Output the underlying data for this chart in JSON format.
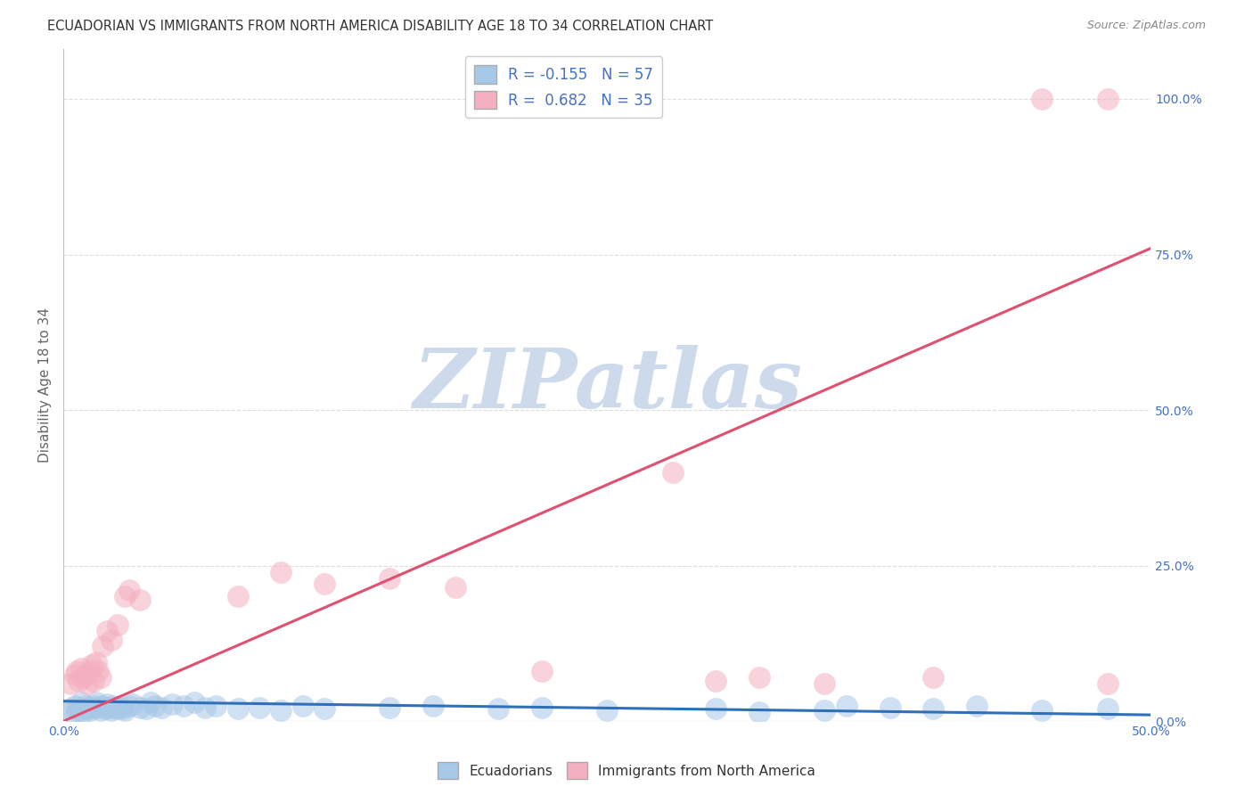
{
  "title": "ECUADORIAN VS IMMIGRANTS FROM NORTH AMERICA DISABILITY AGE 18 TO 34 CORRELATION CHART",
  "source": "Source: ZipAtlas.com",
  "ylabel": "Disability Age 18 to 34",
  "xlim": [
    0.0,
    0.5
  ],
  "ylim": [
    0.0,
    1.08
  ],
  "yticks": [
    0.0,
    0.25,
    0.5,
    0.75,
    1.0
  ],
  "ytick_labels": [
    "0.0%",
    "25.0%",
    "50.0%",
    "75.0%",
    "100.0%"
  ],
  "xticks": [
    0.0,
    0.1,
    0.2,
    0.3,
    0.4,
    0.5
  ],
  "xtick_labels": [
    "0.0%",
    "",
    "",
    "",
    "",
    "50.0%"
  ],
  "blue_R": -0.155,
  "blue_N": 57,
  "pink_R": 0.682,
  "pink_N": 35,
  "blue_color": "#a8c8e8",
  "pink_color": "#f4b0c0",
  "blue_line_color": "#3070b8",
  "pink_line_color": "#e05070",
  "blue_line_x": [
    0.0,
    0.5
  ],
  "blue_line_y": [
    0.032,
    0.01
  ],
  "pink_line_x": [
    0.0,
    0.5
  ],
  "pink_line_y": [
    0.0,
    0.76
  ],
  "watermark_text": "ZIPatlas",
  "watermark_color": "#cddaeb",
  "background_color": "#ffffff",
  "grid_color": "#dddddd",
  "legend_label_blue": "Ecuadorians",
  "legend_label_pink": "Immigrants from North America",
  "blue_scatter_x": [
    0.003,
    0.005,
    0.006,
    0.007,
    0.008,
    0.009,
    0.01,
    0.011,
    0.012,
    0.013,
    0.014,
    0.015,
    0.016,
    0.017,
    0.018,
    0.019,
    0.02,
    0.021,
    0.022,
    0.023,
    0.024,
    0.025,
    0.026,
    0.027,
    0.028,
    0.03,
    0.032,
    0.035,
    0.038,
    0.04,
    0.042,
    0.045,
    0.05,
    0.055,
    0.06,
    0.065,
    0.07,
    0.08,
    0.09,
    0.1,
    0.11,
    0.12,
    0.15,
    0.17,
    0.2,
    0.22,
    0.25,
    0.3,
    0.32,
    0.35,
    0.38,
    0.4,
    0.42,
    0.45,
    0.48,
    0.005,
    0.36
  ],
  "blue_scatter_y": [
    0.02,
    0.025,
    0.018,
    0.022,
    0.03,
    0.015,
    0.025,
    0.02,
    0.018,
    0.022,
    0.025,
    0.03,
    0.022,
    0.018,
    0.025,
    0.02,
    0.028,
    0.022,
    0.018,
    0.025,
    0.02,
    0.022,
    0.025,
    0.02,
    0.018,
    0.025,
    0.028,
    0.022,
    0.02,
    0.03,
    0.025,
    0.022,
    0.028,
    0.025,
    0.03,
    0.022,
    0.025,
    0.02,
    0.022,
    0.018,
    0.025,
    0.02,
    0.022,
    0.025,
    0.02,
    0.022,
    0.018,
    0.02,
    0.015,
    0.018,
    0.022,
    0.02,
    0.025,
    0.018,
    0.02,
    0.01,
    0.025
  ],
  "pink_scatter_x": [
    0.003,
    0.005,
    0.006,
    0.007,
    0.008,
    0.009,
    0.01,
    0.011,
    0.012,
    0.013,
    0.014,
    0.015,
    0.016,
    0.017,
    0.018,
    0.02,
    0.022,
    0.025,
    0.028,
    0.03,
    0.035,
    0.08,
    0.1,
    0.12,
    0.15,
    0.18,
    0.22,
    0.28,
    0.3,
    0.32,
    0.35,
    0.4,
    0.45,
    0.48,
    0.48
  ],
  "pink_scatter_y": [
    0.06,
    0.075,
    0.08,
    0.065,
    0.085,
    0.07,
    0.075,
    0.06,
    0.08,
    0.09,
    0.065,
    0.095,
    0.08,
    0.07,
    0.12,
    0.145,
    0.13,
    0.155,
    0.2,
    0.21,
    0.195,
    0.2,
    0.24,
    0.22,
    0.23,
    0.215,
    0.08,
    0.4,
    0.065,
    0.07,
    0.06,
    0.07,
    1.0,
    1.0,
    0.06
  ]
}
